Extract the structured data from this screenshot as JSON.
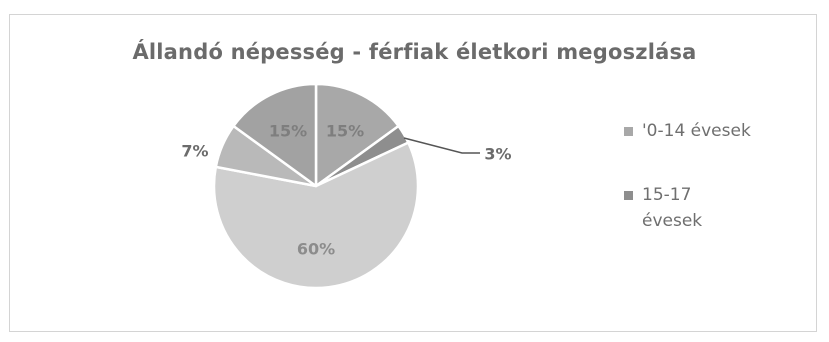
{
  "chart_data": {
    "type": "pie",
    "title": "Állandó népesség - férfiak életkori megoszlása",
    "slices": [
      {
        "label": "15%",
        "value": 15,
        "color": "#a8a8a8"
      },
      {
        "label": "3%",
        "value": 3,
        "color": "#8e8e8e"
      },
      {
        "label": "60%",
        "value": 60,
        "color": "#cfcfcf"
      },
      {
        "label": "7%",
        "value": 7,
        "color": "#b9b9b9"
      },
      {
        "label": "15%",
        "value": 15,
        "color": "#a2a2a2"
      }
    ],
    "legend": [
      {
        "label": "'0-14 évesek",
        "color": "#a8a8a8"
      },
      {
        "label": "15-17 évesek",
        "color": "#8e8e8e"
      }
    ],
    "legend_position": "right"
  }
}
